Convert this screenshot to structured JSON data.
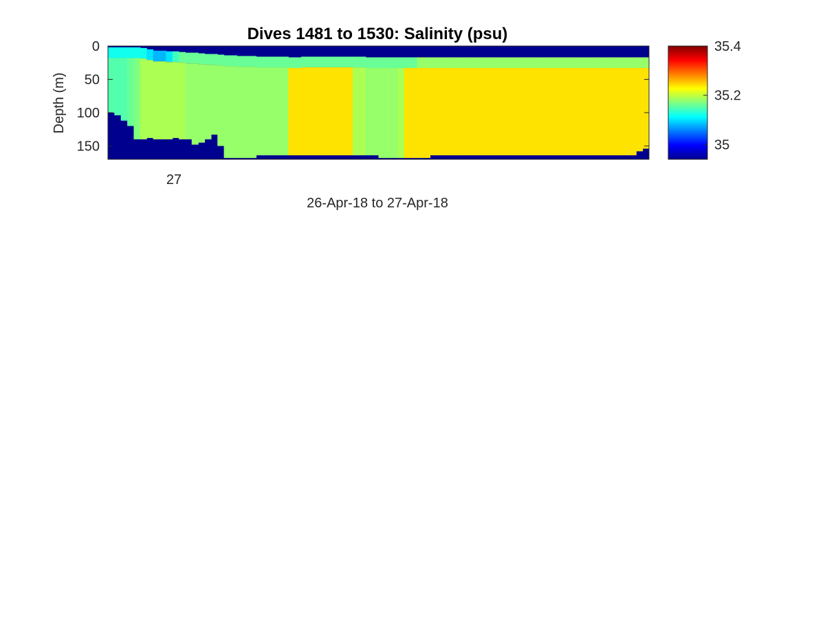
{
  "chart_data": {
    "type": "heatmap",
    "title": "Dives 1481 to 1530: Salinity (psu)",
    "xlabel": "26-Apr-18 to 27-Apr-18",
    "ylabel": "Depth (m)",
    "x_tick_labels": [
      "27"
    ],
    "y_tick_labels": [
      "0",
      "50",
      "100",
      "150"
    ],
    "y_ticks": [
      0,
      50,
      100,
      150
    ],
    "ylim": [
      0,
      170
    ],
    "y_reversed": true,
    "colorbar": {
      "colormap": "jet",
      "clim": [
        34.94,
        35.4
      ],
      "tick_labels": [
        "35",
        "35.2",
        "35.4"
      ],
      "ticks": [
        35.0,
        35.2,
        35.4
      ]
    },
    "background_value": 34.94,
    "columns": 84,
    "column_top_depth_m": [
      2,
      2,
      2,
      2,
      2,
      3,
      5,
      7,
      7,
      8,
      8,
      9,
      10,
      10,
      11,
      12,
      12,
      13,
      14,
      14,
      15,
      15,
      15,
      16,
      16,
      16,
      16,
      16,
      17,
      17,
      16,
      16,
      16,
      16,
      16,
      16,
      16,
      16,
      16,
      16,
      17,
      17,
      17,
      17,
      17,
      17,
      17,
      17,
      17,
      17,
      17,
      17,
      17,
      17,
      17,
      17,
      17,
      17,
      17,
      17,
      17,
      17,
      17,
      17,
      17,
      17,
      17,
      17,
      17,
      17,
      17,
      17,
      17,
      17,
      17,
      17,
      17,
      17,
      17,
      17,
      17,
      17,
      17,
      17
    ],
    "column_bottom_depth_m": [
      100,
      104,
      112,
      120,
      140,
      140,
      138,
      140,
      140,
      140,
      138,
      140,
      140,
      148,
      145,
      140,
      133,
      150,
      168,
      168,
      168,
      168,
      168,
      164,
      164,
      164,
      164,
      164,
      164,
      164,
      164,
      164,
      164,
      164,
      164,
      164,
      164,
      164,
      164,
      164,
      164,
      164,
      168,
      168,
      168,
      168,
      168,
      168,
      168,
      168,
      164,
      164,
      164,
      164,
      164,
      164,
      164,
      164,
      164,
      164,
      164,
      164,
      164,
      164,
      164,
      164,
      164,
      164,
      164,
      164,
      164,
      164,
      164,
      164,
      164,
      164,
      164,
      164,
      164,
      164,
      164,
      164,
      158,
      154
    ],
    "column_surface_salinity_psu": [
      35.12,
      35.12,
      35.12,
      35.12,
      35.12,
      35.12,
      35.1,
      35.08,
      35.08,
      35.1,
      35.14,
      35.16,
      35.16,
      35.16,
      35.16,
      35.16,
      35.16,
      35.16,
      35.16,
      35.16,
      35.16,
      35.16,
      35.16,
      35.16,
      35.16,
      35.16,
      35.16,
      35.16,
      35.16,
      35.16,
      35.16,
      35.16,
      35.16,
      35.16,
      35.16,
      35.16,
      35.16,
      35.16,
      35.16,
      35.16,
      35.16,
      35.16,
      35.16,
      35.16,
      35.16,
      35.16,
      35.16,
      35.16,
      35.18,
      35.18,
      35.18,
      35.18,
      35.18,
      35.18,
      35.18,
      35.18,
      35.18,
      35.18,
      35.18,
      35.18,
      35.18,
      35.18,
      35.18,
      35.18,
      35.18,
      35.18,
      35.18,
      35.18,
      35.18,
      35.18,
      35.18,
      35.18,
      35.18,
      35.18,
      35.18,
      35.18,
      35.18,
      35.18,
      35.18,
      35.18,
      35.18,
      35.18,
      35.18,
      35.18
    ],
    "column_interior_salinity_psu": [
      35.15,
      35.15,
      35.15,
      35.16,
      35.17,
      35.19,
      35.19,
      35.19,
      35.19,
      35.19,
      35.19,
      35.19,
      35.18,
      35.18,
      35.18,
      35.18,
      35.18,
      35.18,
      35.18,
      35.18,
      35.18,
      35.18,
      35.18,
      35.18,
      35.18,
      35.18,
      35.18,
      35.18,
      35.24,
      35.24,
      35.24,
      35.24,
      35.24,
      35.24,
      35.24,
      35.24,
      35.24,
      35.24,
      35.19,
      35.19,
      35.18,
      35.18,
      35.18,
      35.18,
      35.18,
      35.19,
      35.24,
      35.24,
      35.24,
      35.24,
      35.24,
      35.24,
      35.24,
      35.24,
      35.24,
      35.24,
      35.24,
      35.24,
      35.24,
      35.24,
      35.24,
      35.24,
      35.24,
      35.24,
      35.24,
      35.24,
      35.24,
      35.24,
      35.24,
      35.24,
      35.24,
      35.24,
      35.24,
      35.24,
      35.24,
      35.24,
      35.24,
      35.24,
      35.24,
      35.24,
      35.24,
      35.24,
      35.24,
      35.24
    ]
  }
}
